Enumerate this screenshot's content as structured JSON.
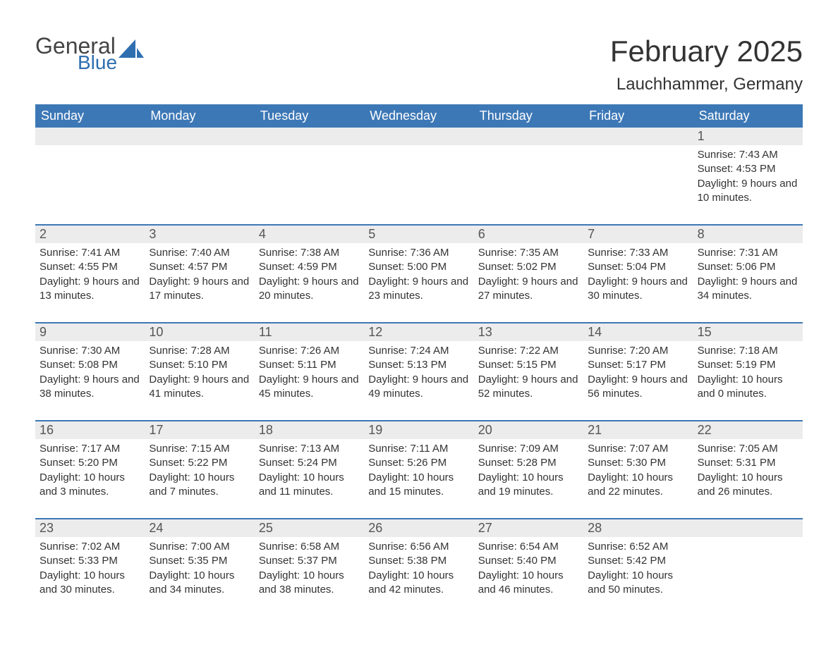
{
  "colors": {
    "header_bg": "#3d78b6",
    "header_text": "#ffffff",
    "daynum_bg": "#ececec",
    "daynum_text": "#555555",
    "body_text": "#333333",
    "blue_brand": "#2f6fb0",
    "page_bg": "#ffffff",
    "row_border": "#3d78b6"
  },
  "fonts": {
    "title_size_pt": 32,
    "location_size_pt": 18,
    "weekday_size_pt": 14,
    "daynum_size_pt": 14,
    "body_size_pt": 11,
    "family": "Arial"
  },
  "logo": {
    "general": "General",
    "blue": "Blue",
    "icon_fill": "#2f6fb0"
  },
  "title": "February 2025",
  "location": "Lauchhammer, Germany",
  "weekdays": [
    "Sunday",
    "Monday",
    "Tuesday",
    "Wednesday",
    "Thursday",
    "Friday",
    "Saturday"
  ],
  "calendar": {
    "type": "table",
    "columns": 7,
    "rows": 5,
    "start_day_index": 6,
    "days_in_month": 28
  },
  "days": {
    "1": {
      "sunrise": "7:43 AM",
      "sunset": "4:53 PM",
      "daylight": "9 hours and 10 minutes."
    },
    "2": {
      "sunrise": "7:41 AM",
      "sunset": "4:55 PM",
      "daylight": "9 hours and 13 minutes."
    },
    "3": {
      "sunrise": "7:40 AM",
      "sunset": "4:57 PM",
      "daylight": "9 hours and 17 minutes."
    },
    "4": {
      "sunrise": "7:38 AM",
      "sunset": "4:59 PM",
      "daylight": "9 hours and 20 minutes."
    },
    "5": {
      "sunrise": "7:36 AM",
      "sunset": "5:00 PM",
      "daylight": "9 hours and 23 minutes."
    },
    "6": {
      "sunrise": "7:35 AM",
      "sunset": "5:02 PM",
      "daylight": "9 hours and 27 minutes."
    },
    "7": {
      "sunrise": "7:33 AM",
      "sunset": "5:04 PM",
      "daylight": "9 hours and 30 minutes."
    },
    "8": {
      "sunrise": "7:31 AM",
      "sunset": "5:06 PM",
      "daylight": "9 hours and 34 minutes."
    },
    "9": {
      "sunrise": "7:30 AM",
      "sunset": "5:08 PM",
      "daylight": "9 hours and 38 minutes."
    },
    "10": {
      "sunrise": "7:28 AM",
      "sunset": "5:10 PM",
      "daylight": "9 hours and 41 minutes."
    },
    "11": {
      "sunrise": "7:26 AM",
      "sunset": "5:11 PM",
      "daylight": "9 hours and 45 minutes."
    },
    "12": {
      "sunrise": "7:24 AM",
      "sunset": "5:13 PM",
      "daylight": "9 hours and 49 minutes."
    },
    "13": {
      "sunrise": "7:22 AM",
      "sunset": "5:15 PM",
      "daylight": "9 hours and 52 minutes."
    },
    "14": {
      "sunrise": "7:20 AM",
      "sunset": "5:17 PM",
      "daylight": "9 hours and 56 minutes."
    },
    "15": {
      "sunrise": "7:18 AM",
      "sunset": "5:19 PM",
      "daylight": "10 hours and 0 minutes."
    },
    "16": {
      "sunrise": "7:17 AM",
      "sunset": "5:20 PM",
      "daylight": "10 hours and 3 minutes."
    },
    "17": {
      "sunrise": "7:15 AM",
      "sunset": "5:22 PM",
      "daylight": "10 hours and 7 minutes."
    },
    "18": {
      "sunrise": "7:13 AM",
      "sunset": "5:24 PM",
      "daylight": "10 hours and 11 minutes."
    },
    "19": {
      "sunrise": "7:11 AM",
      "sunset": "5:26 PM",
      "daylight": "10 hours and 15 minutes."
    },
    "20": {
      "sunrise": "7:09 AM",
      "sunset": "5:28 PM",
      "daylight": "10 hours and 19 minutes."
    },
    "21": {
      "sunrise": "7:07 AM",
      "sunset": "5:30 PM",
      "daylight": "10 hours and 22 minutes."
    },
    "22": {
      "sunrise": "7:05 AM",
      "sunset": "5:31 PM",
      "daylight": "10 hours and 26 minutes."
    },
    "23": {
      "sunrise": "7:02 AM",
      "sunset": "5:33 PM",
      "daylight": "10 hours and 30 minutes."
    },
    "24": {
      "sunrise": "7:00 AM",
      "sunset": "5:35 PM",
      "daylight": "10 hours and 34 minutes."
    },
    "25": {
      "sunrise": "6:58 AM",
      "sunset": "5:37 PM",
      "daylight": "10 hours and 38 minutes."
    },
    "26": {
      "sunrise": "6:56 AM",
      "sunset": "5:38 PM",
      "daylight": "10 hours and 42 minutes."
    },
    "27": {
      "sunrise": "6:54 AM",
      "sunset": "5:40 PM",
      "daylight": "10 hours and 46 minutes."
    },
    "28": {
      "sunrise": "6:52 AM",
      "sunset": "5:42 PM",
      "daylight": "10 hours and 50 minutes."
    }
  },
  "labels": {
    "sunrise": "Sunrise: ",
    "sunset": "Sunset: ",
    "daylight": "Daylight: "
  }
}
